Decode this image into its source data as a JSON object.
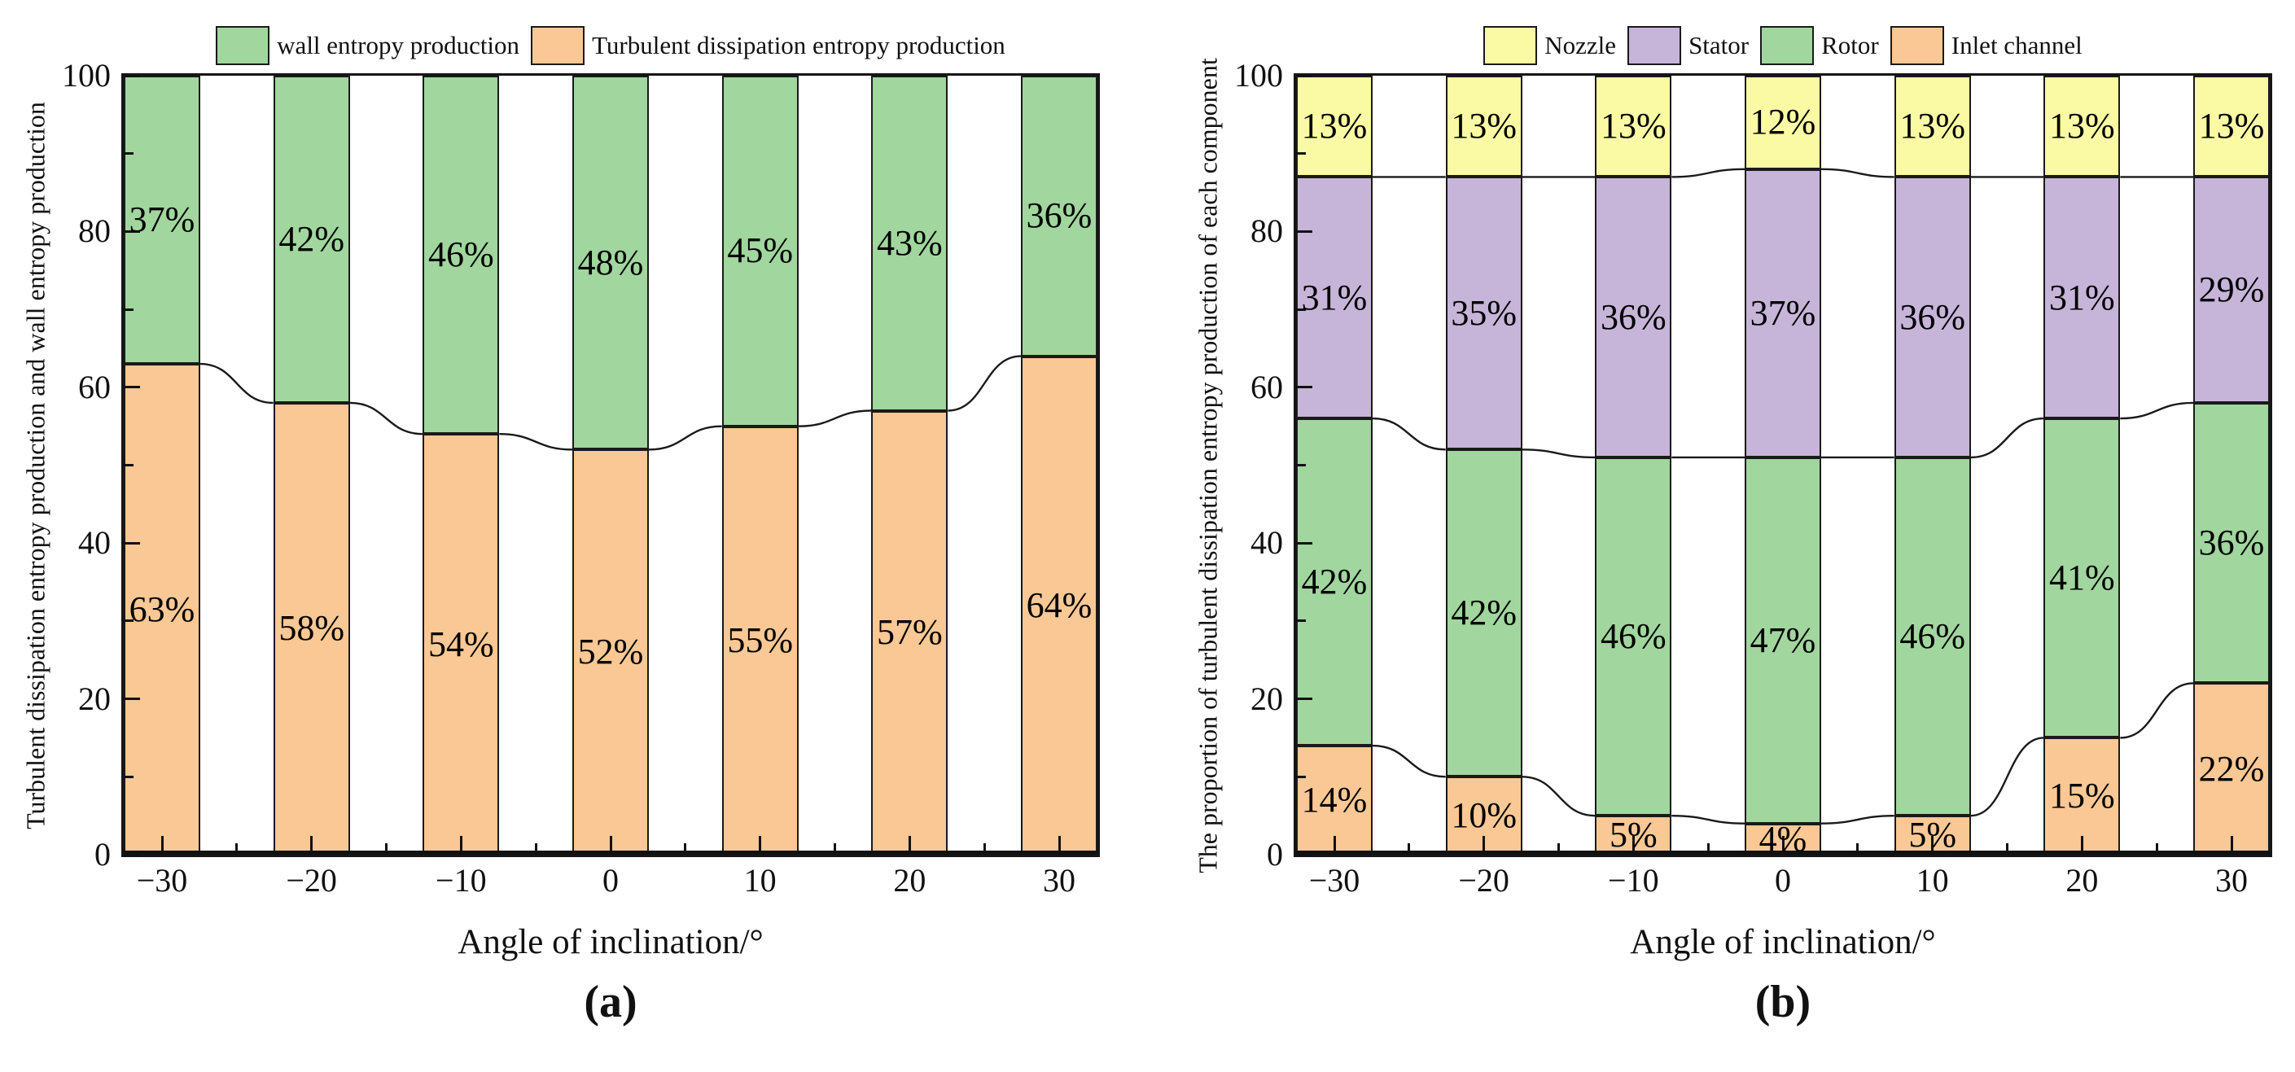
{
  "figure": {
    "background": "#ffffff",
    "panels": [
      "(a)",
      "(b)"
    ]
  },
  "chart_data": [
    {
      "type": "bar",
      "stacked": true,
      "panel": "(a)",
      "title": "",
      "xlabel": "Angle of inclination/°",
      "ylabel": "Turbulent dissipation entropy production and wall entropy production",
      "categories": [
        "−30",
        "−20",
        "−10",
        "0",
        "10",
        "20",
        "30"
      ],
      "ylim": [
        0,
        100
      ],
      "yticks": [
        0,
        20,
        40,
        60,
        80,
        100
      ],
      "y_minor_step": 10,
      "grid": false,
      "legend_position": "top",
      "legend_order": [
        "wall entropy production",
        "Turbulent dissipation entropy production"
      ],
      "connector_color": "#1a1a1a",
      "series": [
        {
          "name": "Turbulent dissipation entropy production",
          "color": "#f9c894",
          "values": [
            63,
            58,
            54,
            52,
            55,
            57,
            64
          ],
          "labels": [
            "63%",
            "58%",
            "54%",
            "52%",
            "55%",
            "57%",
            "64%"
          ]
        },
        {
          "name": "wall entropy production",
          "color": "#a1d69e",
          "values": [
            37,
            42,
            46,
            48,
            45,
            43,
            36
          ],
          "labels": [
            "37%",
            "42%",
            "46%",
            "48%",
            "45%",
            "43%",
            "36%"
          ]
        }
      ]
    },
    {
      "type": "bar",
      "stacked": true,
      "panel": "(b)",
      "title": "",
      "xlabel": "Angle of inclination/°",
      "ylabel": "The proportion of turbulent dissipation entropy production of each component",
      "categories": [
        "−30",
        "−20",
        "−10",
        "0",
        "10",
        "20",
        "30"
      ],
      "ylim": [
        0,
        100
      ],
      "yticks": [
        0,
        20,
        40,
        60,
        80,
        100
      ],
      "y_minor_step": 10,
      "grid": false,
      "legend_position": "top",
      "legend_order": [
        "Nozzle",
        "Stator",
        "Rotor",
        "Inlet channel"
      ],
      "connector_color": "#1a1a1a",
      "series": [
        {
          "name": "Inlet channel",
          "color": "#f9c894",
          "values": [
            14,
            10,
            5,
            4,
            5,
            15,
            22
          ],
          "labels": [
            "14%",
            "10%",
            "5%",
            "4%",
            "5%",
            "15%",
            "22%"
          ]
        },
        {
          "name": "Rotor",
          "color": "#a1d69e",
          "values": [
            42,
            42,
            46,
            47,
            46,
            41,
            36
          ],
          "labels": [
            "42%",
            "42%",
            "46%",
            "47%",
            "46%",
            "41%",
            "36%"
          ]
        },
        {
          "name": "Stator",
          "color": "#c6b5d9",
          "values": [
            31,
            35,
            36,
            37,
            36,
            31,
            29
          ],
          "labels": [
            "31%",
            "35%",
            "36%",
            "37%",
            "36%",
            "31%",
            "29%"
          ]
        },
        {
          "name": "Nozzle",
          "color": "#fafaa4",
          "values": [
            13,
            13,
            13,
            12,
            13,
            13,
            13
          ],
          "labels": [
            "13%",
            "13%",
            "13%",
            "12%",
            "13%",
            "13%",
            "13%"
          ]
        }
      ]
    }
  ]
}
